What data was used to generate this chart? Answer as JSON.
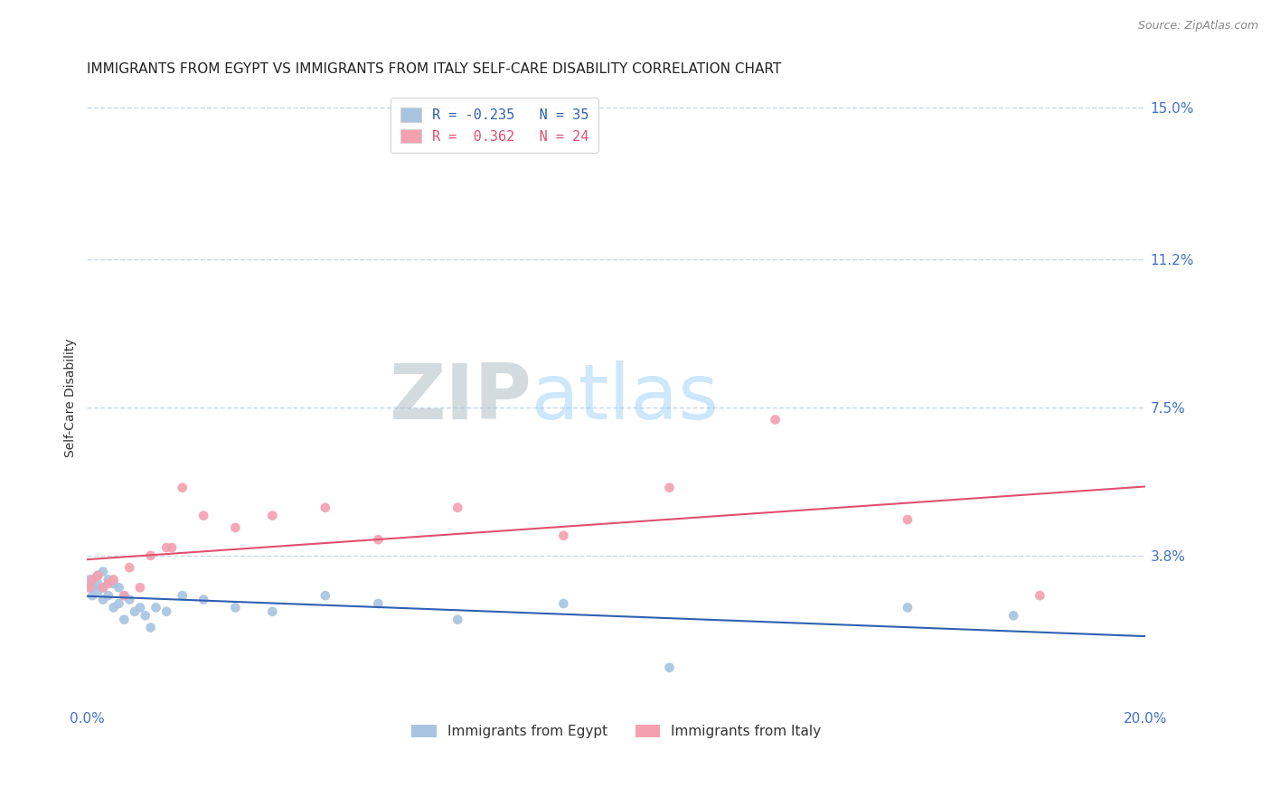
{
  "title": "IMMIGRANTS FROM EGYPT VS IMMIGRANTS FROM ITALY SELF-CARE DISABILITY CORRELATION CHART",
  "source_text": "Source: ZipAtlas.com",
  "ylabel": "Self-Care Disability",
  "xlim": [
    0.0,
    0.2
  ],
  "ylim": [
    0.0,
    0.155
  ],
  "ytick_vals": [
    0.038,
    0.075,
    0.112,
    0.15
  ],
  "ytick_labels": [
    "3.8%",
    "7.5%",
    "11.2%",
    "15.0%"
  ],
  "xtick_vals": [
    0.0,
    0.2
  ],
  "xtick_labels": [
    "0.0%",
    "20.0%"
  ],
  "egypt_color": "#a8c4e0",
  "italy_color": "#f4a0b0",
  "egypt_line_color": "#3060b0",
  "italy_line_color": "#e05070",
  "watermark_zip": "ZIP",
  "watermark_atlas": "atlas",
  "background_color": "#ffffff",
  "grid_color": "#c8d8e8",
  "tick_label_color": "#4472c4",
  "title_color": "#222222",
  "title_fontsize": 11,
  "egypt_x": [
    0.0005,
    0.001,
    0.001,
    0.002,
    0.002,
    0.002,
    0.003,
    0.003,
    0.003,
    0.004,
    0.004,
    0.005,
    0.005,
    0.006,
    0.006,
    0.007,
    0.007,
    0.008,
    0.009,
    0.01,
    0.011,
    0.012,
    0.013,
    0.015,
    0.018,
    0.022,
    0.028,
    0.035,
    0.045,
    0.055,
    0.07,
    0.09,
    0.11,
    0.155,
    0.175
  ],
  "egypt_y": [
    0.032,
    0.03,
    0.028,
    0.033,
    0.031,
    0.029,
    0.034,
    0.03,
    0.027,
    0.032,
    0.028,
    0.031,
    0.025,
    0.03,
    0.026,
    0.028,
    0.022,
    0.027,
    0.024,
    0.025,
    0.023,
    0.02,
    0.025,
    0.024,
    0.028,
    0.027,
    0.025,
    0.024,
    0.028,
    0.026,
    0.022,
    0.026,
    0.01,
    0.025,
    0.023
  ],
  "italy_x": [
    0.0005,
    0.001,
    0.002,
    0.003,
    0.004,
    0.005,
    0.007,
    0.008,
    0.01,
    0.012,
    0.015,
    0.016,
    0.018,
    0.022,
    0.028,
    0.035,
    0.045,
    0.055,
    0.07,
    0.09,
    0.11,
    0.13,
    0.155,
    0.18
  ],
  "italy_y": [
    0.03,
    0.032,
    0.033,
    0.03,
    0.031,
    0.032,
    0.028,
    0.035,
    0.03,
    0.038,
    0.04,
    0.04,
    0.055,
    0.048,
    0.045,
    0.048,
    0.05,
    0.042,
    0.05,
    0.043,
    0.055,
    0.072,
    0.047,
    0.028
  ],
  "egypt_R": -0.235,
  "egypt_N": 35,
  "italy_R": 0.362,
  "italy_N": 24
}
